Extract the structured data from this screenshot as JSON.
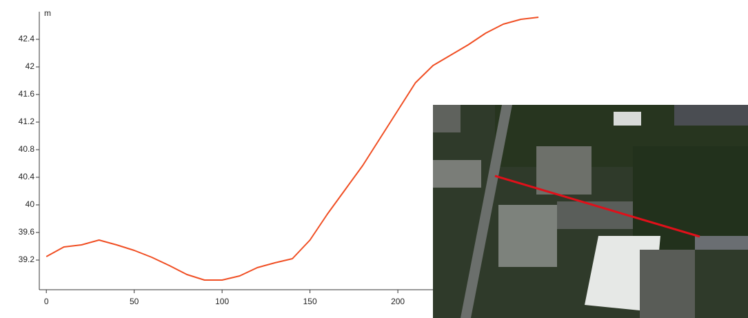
{
  "chart_data": {
    "type": "line",
    "y_label": "m",
    "x": [
      0,
      10,
      20,
      30,
      40,
      50,
      60,
      70,
      80,
      90,
      100,
      110,
      120,
      130,
      140,
      150,
      160,
      170,
      180,
      190,
      200,
      210,
      220,
      230,
      240,
      250,
      260,
      270,
      280
    ],
    "series": [
      {
        "color": "#f04e23",
        "values": [
          39.25,
          39.39,
          39.42,
          39.49,
          39.42,
          39.34,
          39.24,
          39.12,
          38.99,
          38.91,
          38.91,
          38.97,
          39.09,
          39.16,
          39.22,
          39.49,
          39.87,
          40.22,
          40.57,
          40.97,
          41.37,
          41.77,
          42.02,
          42.17,
          42.32,
          42.49,
          42.62,
          42.69,
          42.72
        ]
      }
    ],
    "xlim": [
      -4,
      400
    ],
    "xticks": [
      0,
      50,
      100,
      150,
      200
    ],
    "ylim": [
      38.77,
      42.8
    ],
    "yticks": [
      39.2,
      39.6,
      40,
      40.4,
      40.8,
      41.2,
      41.6,
      42,
      42.4
    ],
    "grid": false
  }
}
